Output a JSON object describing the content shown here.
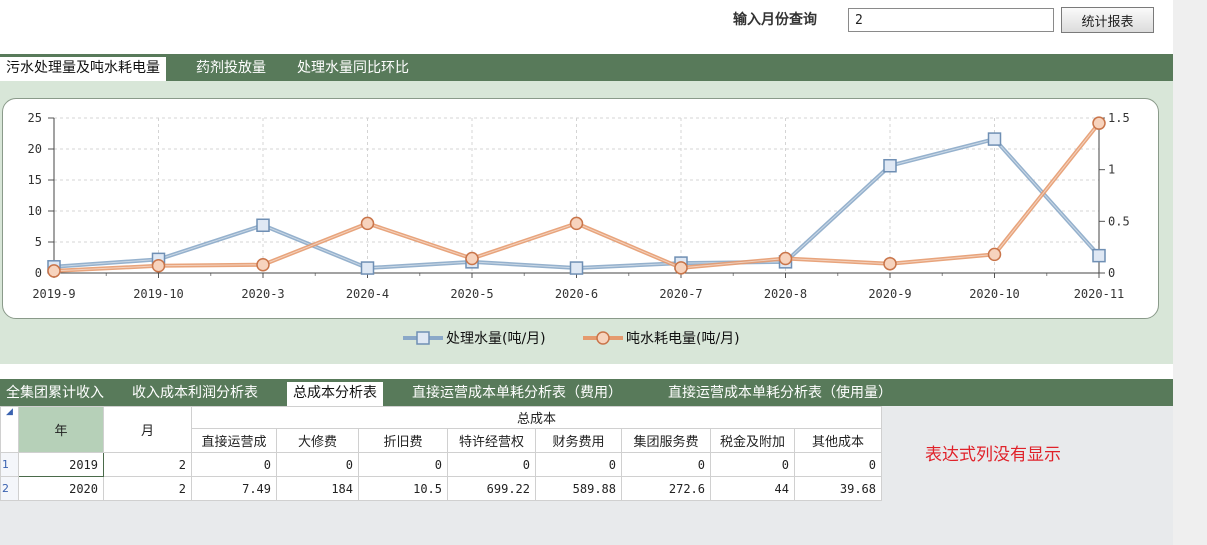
{
  "query": {
    "label": "输入月份查询",
    "value": "2",
    "button_label": "统计报表"
  },
  "chart_tabs": [
    {
      "label": "污水处理量及吨水耗电量",
      "active": true
    },
    {
      "label": "药剂投放量",
      "active": false
    },
    {
      "label": "处理水量同比环比",
      "active": false
    }
  ],
  "chart_data": {
    "type": "line",
    "categories": [
      "2019-9",
      "2019-10",
      "2020-3",
      "2020-4",
      "2020-5",
      "2020-6",
      "2020-7",
      "2020-8",
      "2020-9",
      "2020-10",
      "2020-11"
    ],
    "y_left": {
      "min": 0,
      "max": 25,
      "ticks": [
        "0",
        "5",
        "10",
        "15",
        "20",
        "25"
      ]
    },
    "y_right": {
      "min": 0,
      "max": 1.5,
      "ticks": [
        "0",
        "0.5",
        "1",
        "1.5"
      ]
    },
    "grid": true,
    "legend_position": "bottom-center",
    "series": [
      {
        "name": "处理水量(吨/月)",
        "axis": "left",
        "color": "#8aa8c8",
        "marker": "square",
        "values": [
          1.0,
          2.2,
          7.7,
          0.8,
          1.8,
          0.8,
          1.6,
          1.8,
          17.3,
          21.6,
          2.8
        ]
      },
      {
        "name": "吨水耗电量(吨/月)",
        "axis": "right",
        "color": "#e59a6e",
        "marker": "circle",
        "values": [
          0.02,
          0.07,
          0.08,
          0.48,
          0.14,
          0.48,
          0.05,
          0.14,
          0.09,
          0.18,
          1.45
        ]
      }
    ]
  },
  "table_tabs": [
    {
      "label": "全集团累计收入",
      "active": false
    },
    {
      "label": "收入成本利润分析表",
      "active": false
    },
    {
      "label": "总成本分析表",
      "active": true
    },
    {
      "label": "直接运营成本单耗分析表（费用）",
      "active": false
    },
    {
      "label": "直接运营成本单耗分析表（使用量）",
      "active": false
    }
  ],
  "table": {
    "col_year": "年",
    "col_month": "月",
    "group_header": "总成本",
    "sub_headers": [
      "直接运营成",
      "大修费",
      "折旧费",
      "特许经营权",
      "财务费用",
      "集团服务费",
      "税金及附加",
      "其他成本"
    ],
    "rows": [
      {
        "idx": "1",
        "year": "2019",
        "month": "2",
        "values": [
          "0",
          "0",
          "0",
          "0",
          "0",
          "0",
          "0",
          "0"
        ]
      },
      {
        "idx": "2",
        "year": "2020",
        "month": "2",
        "values": [
          "7.49",
          "184",
          "10.5",
          "699.22",
          "589.88",
          "272.6",
          "44",
          "39.68"
        ]
      }
    ]
  },
  "note": "表达式列没有显示"
}
